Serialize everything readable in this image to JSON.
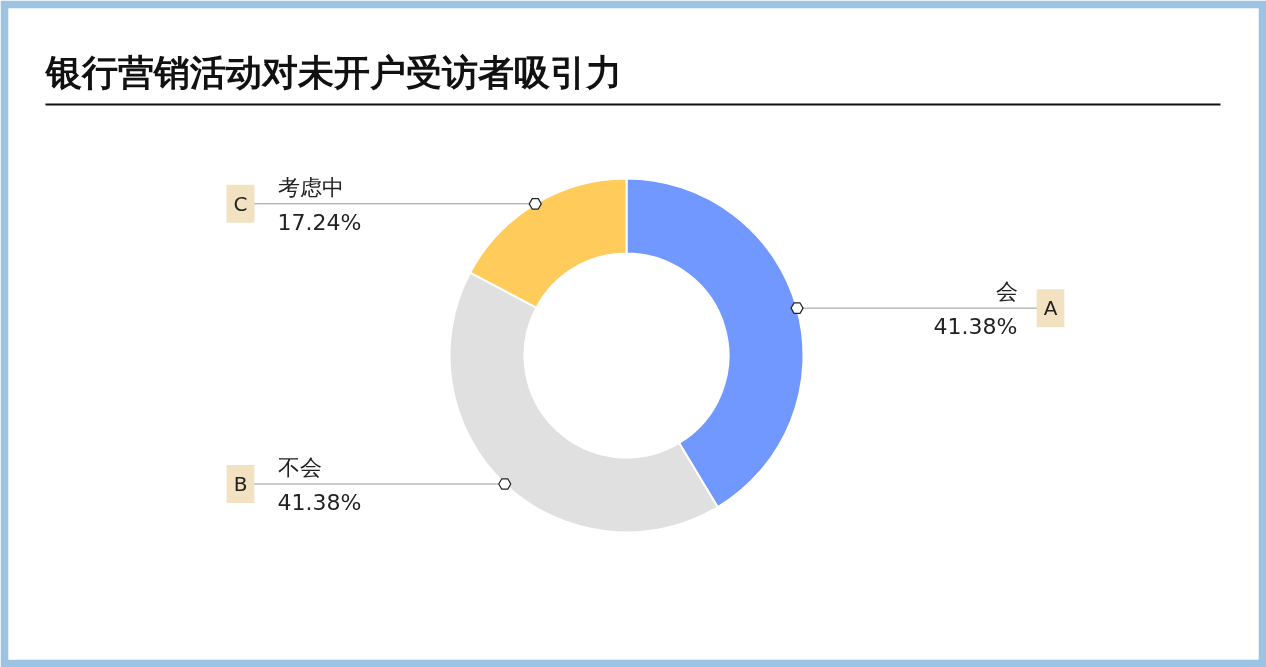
{
  "chart_data": {
    "type": "donut",
    "title": "银行营销活动对未开户受访者吸引力",
    "categories": [
      "会",
      "不会",
      "考虑中"
    ],
    "values": [
      41.38,
      41.38,
      17.24
    ],
    "colors": [
      "#7098fe",
      "#e0e0e0",
      "#ffcb5b"
    ],
    "value_labels": [
      "41.38%",
      "41.38%",
      "17.24%"
    ],
    "annotations": [
      "A",
      "B",
      "C"
    ]
  }
}
